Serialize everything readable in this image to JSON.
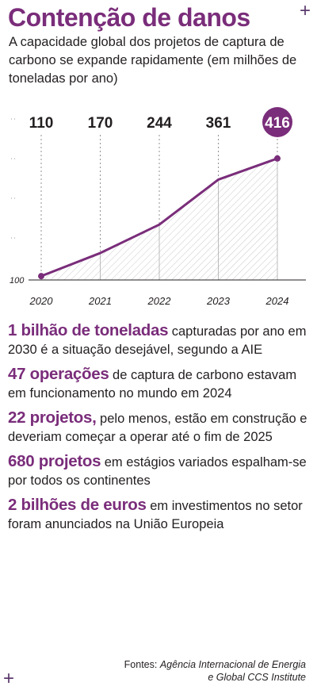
{
  "header": {
    "title": "Contenção de danos",
    "subtitle": "A capacidade global dos projetos de captura de carbono se expande rapidamente (em milhões de toneladas por ano)"
  },
  "chart_data": {
    "type": "line",
    "x": [
      "2020",
      "2021",
      "2022",
      "2023",
      "2024"
    ],
    "values": [
      110,
      170,
      244,
      361,
      416
    ],
    "value_labels": [
      "110",
      "170",
      "244",
      "361",
      "416"
    ],
    "y_tick_label": "100",
    "ylim": [
      100,
      430
    ],
    "area_fill": "hatched",
    "highlight_last": true,
    "line_color": "#7a2d7a"
  },
  "facts": [
    {
      "highlight": "1 bilhão de toneladas",
      "text": " capturadas por ano em 2030 é a situação desejável, segundo a AIE"
    },
    {
      "highlight": "47 operações",
      "text": " de captura de carbono estavam em funcionamento no mundo em 2024"
    },
    {
      "highlight": "22 projetos,",
      "text": " pelo menos, estão em construção e deveriam começar a operar até o fim de 2025"
    },
    {
      "highlight": "680 projetos",
      "text": " em estágios variados espalham-se por todos os continentes"
    },
    {
      "highlight": "2 bilhões de euros",
      "text": " em investimentos no setor foram anunciados na União Europeia"
    }
  ],
  "source": {
    "prefix": "Fontes: ",
    "line1": "Agência Internacional de Energia",
    "line2": "e Global CCS Institute"
  },
  "colors": {
    "accent": "#7a2d7a",
    "text": "#231f20"
  },
  "icons": [
    "plus-icon"
  ]
}
